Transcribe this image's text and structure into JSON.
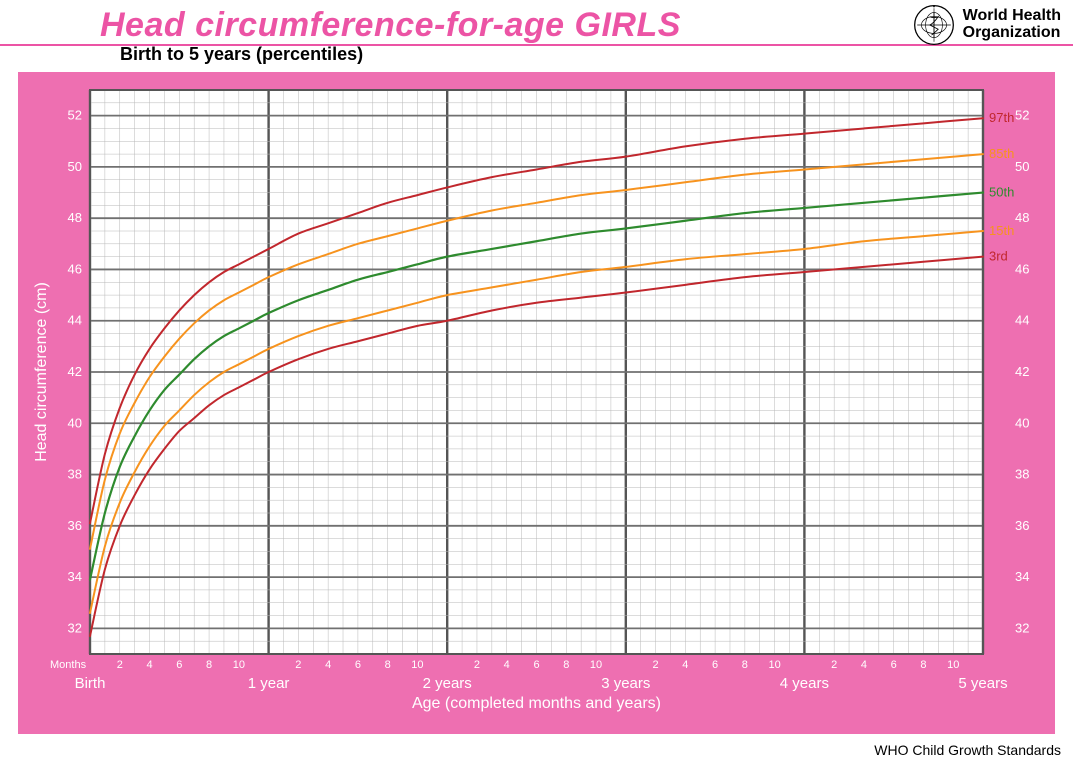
{
  "header": {
    "title": "Head circumference-for-age  GIRLS",
    "title_color": "#EC54A5",
    "subtitle": "Birth to 5 years (percentiles)",
    "org_line1": "World Health",
    "org_line2": "Organization"
  },
  "footer": {
    "text": "WHO Child Growth Standards"
  },
  "chart": {
    "type": "line",
    "frame_color": "#EE6FB1",
    "plot_bg": "#ffffff",
    "grid_minor_color": "#b8b8b8",
    "grid_major_color": "#707070",
    "grid_year_color": "#555555",
    "axis_text_color": "#ffffff",
    "x": {
      "min": 0,
      "max": 60,
      "minor_step": 1,
      "month_tick_labels": [
        2,
        4,
        6,
        8,
        10
      ],
      "year_ticks": [
        0,
        12,
        24,
        36,
        48,
        60
      ],
      "year_labels": [
        "Birth",
        "1 year",
        "2 years",
        "3 years",
        "4 years",
        "5 years"
      ],
      "months_word": "Months",
      "title": "Age (completed months and years)"
    },
    "y": {
      "min": 31,
      "max": 53,
      "minor_step": 0.5,
      "tick_major": [
        32,
        34,
        36,
        38,
        40,
        42,
        44,
        46,
        48,
        50,
        52
      ],
      "title": "Head circumference (cm)"
    },
    "series": [
      {
        "name": "3rd",
        "label": "3rd",
        "color": "#c1272d",
        "width": 2.0,
        "points": [
          [
            0,
            31.7
          ],
          [
            1,
            34.3
          ],
          [
            2,
            36.0
          ],
          [
            3,
            37.2
          ],
          [
            4,
            38.2
          ],
          [
            5,
            39.0
          ],
          [
            6,
            39.7
          ],
          [
            7,
            40.2
          ],
          [
            8,
            40.7
          ],
          [
            9,
            41.1
          ],
          [
            10,
            41.4
          ],
          [
            11,
            41.7
          ],
          [
            12,
            42.0
          ],
          [
            14,
            42.5
          ],
          [
            16,
            42.9
          ],
          [
            18,
            43.2
          ],
          [
            20,
            43.5
          ],
          [
            22,
            43.8
          ],
          [
            24,
            44.0
          ],
          [
            27,
            44.4
          ],
          [
            30,
            44.7
          ],
          [
            33,
            44.9
          ],
          [
            36,
            45.1
          ],
          [
            40,
            45.4
          ],
          [
            44,
            45.7
          ],
          [
            48,
            45.9
          ],
          [
            52,
            46.1
          ],
          [
            56,
            46.3
          ],
          [
            60,
            46.5
          ]
        ]
      },
      {
        "name": "15th",
        "label": "15th",
        "color": "#f7931e",
        "width": 2.0,
        "points": [
          [
            0,
            32.6
          ],
          [
            1,
            35.2
          ],
          [
            2,
            36.9
          ],
          [
            3,
            38.1
          ],
          [
            4,
            39.1
          ],
          [
            5,
            39.9
          ],
          [
            6,
            40.5
          ],
          [
            7,
            41.1
          ],
          [
            8,
            41.6
          ],
          [
            9,
            42.0
          ],
          [
            10,
            42.3
          ],
          [
            11,
            42.6
          ],
          [
            12,
            42.9
          ],
          [
            14,
            43.4
          ],
          [
            16,
            43.8
          ],
          [
            18,
            44.1
          ],
          [
            20,
            44.4
          ],
          [
            22,
            44.7
          ],
          [
            24,
            45.0
          ],
          [
            27,
            45.3
          ],
          [
            30,
            45.6
          ],
          [
            33,
            45.9
          ],
          [
            36,
            46.1
          ],
          [
            40,
            46.4
          ],
          [
            44,
            46.6
          ],
          [
            48,
            46.8
          ],
          [
            52,
            47.1
          ],
          [
            56,
            47.3
          ],
          [
            60,
            47.5
          ]
        ]
      },
      {
        "name": "50th",
        "label": "50th",
        "color": "#2e8b2e",
        "width": 2.2,
        "points": [
          [
            0,
            33.9
          ],
          [
            1,
            36.5
          ],
          [
            2,
            38.3
          ],
          [
            3,
            39.5
          ],
          [
            4,
            40.5
          ],
          [
            5,
            41.3
          ],
          [
            6,
            41.9
          ],
          [
            7,
            42.5
          ],
          [
            8,
            43.0
          ],
          [
            9,
            43.4
          ],
          [
            10,
            43.7
          ],
          [
            11,
            44.0
          ],
          [
            12,
            44.3
          ],
          [
            14,
            44.8
          ],
          [
            16,
            45.2
          ],
          [
            18,
            45.6
          ],
          [
            20,
            45.9
          ],
          [
            22,
            46.2
          ],
          [
            24,
            46.5
          ],
          [
            27,
            46.8
          ],
          [
            30,
            47.1
          ],
          [
            33,
            47.4
          ],
          [
            36,
            47.6
          ],
          [
            40,
            47.9
          ],
          [
            44,
            48.2
          ],
          [
            48,
            48.4
          ],
          [
            52,
            48.6
          ],
          [
            56,
            48.8
          ],
          [
            60,
            49.0
          ]
        ]
      },
      {
        "name": "85th",
        "label": "85th",
        "color": "#f7931e",
        "width": 2.0,
        "points": [
          [
            0,
            35.1
          ],
          [
            1,
            37.8
          ],
          [
            2,
            39.6
          ],
          [
            3,
            40.8
          ],
          [
            4,
            41.8
          ],
          [
            5,
            42.6
          ],
          [
            6,
            43.3
          ],
          [
            7,
            43.9
          ],
          [
            8,
            44.4
          ],
          [
            9,
            44.8
          ],
          [
            10,
            45.1
          ],
          [
            11,
            45.4
          ],
          [
            12,
            45.7
          ],
          [
            14,
            46.2
          ],
          [
            16,
            46.6
          ],
          [
            18,
            47.0
          ],
          [
            20,
            47.3
          ],
          [
            22,
            47.6
          ],
          [
            24,
            47.9
          ],
          [
            27,
            48.3
          ],
          [
            30,
            48.6
          ],
          [
            33,
            48.9
          ],
          [
            36,
            49.1
          ],
          [
            40,
            49.4
          ],
          [
            44,
            49.7
          ],
          [
            48,
            49.9
          ],
          [
            52,
            50.1
          ],
          [
            56,
            50.3
          ],
          [
            60,
            50.5
          ]
        ]
      },
      {
        "name": "97th",
        "label": "97th",
        "color": "#c1272d",
        "width": 2.0,
        "points": [
          [
            0,
            36.1
          ],
          [
            1,
            38.8
          ],
          [
            2,
            40.6
          ],
          [
            3,
            41.9
          ],
          [
            4,
            42.9
          ],
          [
            5,
            43.7
          ],
          [
            6,
            44.4
          ],
          [
            7,
            45.0
          ],
          [
            8,
            45.5
          ],
          [
            9,
            45.9
          ],
          [
            10,
            46.2
          ],
          [
            11,
            46.5
          ],
          [
            12,
            46.8
          ],
          [
            14,
            47.4
          ],
          [
            16,
            47.8
          ],
          [
            18,
            48.2
          ],
          [
            20,
            48.6
          ],
          [
            22,
            48.9
          ],
          [
            24,
            49.2
          ],
          [
            27,
            49.6
          ],
          [
            30,
            49.9
          ],
          [
            33,
            50.2
          ],
          [
            36,
            50.4
          ],
          [
            40,
            50.8
          ],
          [
            44,
            51.1
          ],
          [
            48,
            51.3
          ],
          [
            52,
            51.5
          ],
          [
            56,
            51.7
          ],
          [
            60,
            51.9
          ]
        ]
      }
    ]
  }
}
